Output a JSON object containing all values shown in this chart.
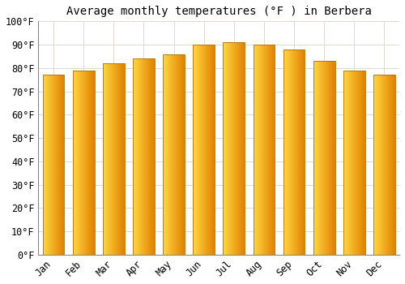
{
  "title": "Average monthly temperatures (°F ) in Berbera",
  "months": [
    "Jan",
    "Feb",
    "Mar",
    "Apr",
    "May",
    "Jun",
    "Jul",
    "Aug",
    "Sep",
    "Oct",
    "Nov",
    "Dec"
  ],
  "values": [
    77,
    79,
    82,
    84,
    86,
    90,
    91,
    90,
    88,
    83,
    79,
    77
  ],
  "bar_color_left": "#FFD740",
  "bar_color_right": "#E08000",
  "bar_edge_color": "#B07000",
  "ylim": [
    0,
    100
  ],
  "yticks": [
    0,
    10,
    20,
    30,
    40,
    50,
    60,
    70,
    80,
    90,
    100
  ],
  "ytick_labels": [
    "0°F",
    "10°F",
    "20°F",
    "30°F",
    "40°F",
    "50°F",
    "60°F",
    "70°F",
    "80°F",
    "90°F",
    "100°F"
  ],
  "background_color": "#ffffff",
  "plot_bg_color": "#fdf5f0",
  "grid_color": "#e0d8d0",
  "title_fontsize": 10,
  "tick_fontsize": 8.5,
  "bar_width": 0.72,
  "gradient_steps": 50
}
